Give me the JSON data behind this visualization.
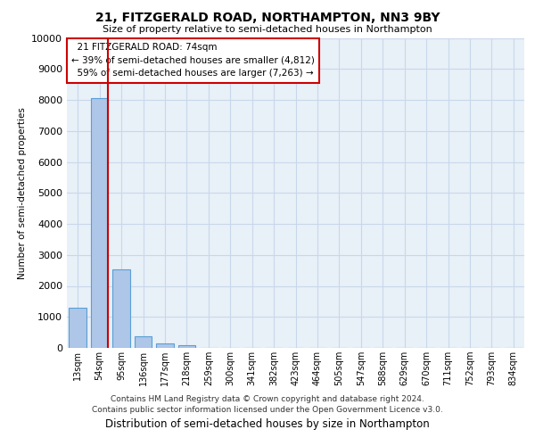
{
  "title_line1": "21, FITZGERALD ROAD, NORTHAMPTON, NN3 9BY",
  "title_line2": "Size of property relative to semi-detached houses in Northampton",
  "xlabel_bottom": "Distribution of semi-detached houses by size in Northampton",
  "ylabel": "Number of semi-detached properties",
  "footer_line1": "Contains HM Land Registry data © Crown copyright and database right 2024.",
  "footer_line2": "Contains public sector information licensed under the Open Government Licence v3.0.",
  "categories": [
    "13sqm",
    "54sqm",
    "95sqm",
    "136sqm",
    "177sqm",
    "218sqm",
    "259sqm",
    "300sqm",
    "341sqm",
    "382sqm",
    "423sqm",
    "464sqm",
    "505sqm",
    "547sqm",
    "588sqm",
    "629sqm",
    "670sqm",
    "711sqm",
    "752sqm",
    "793sqm",
    "834sqm"
  ],
  "values": [
    1300,
    8050,
    2520,
    380,
    140,
    90,
    0,
    0,
    0,
    0,
    0,
    0,
    0,
    0,
    0,
    0,
    0,
    0,
    0,
    0,
    0
  ],
  "bar_color": "#aec6e8",
  "bar_edge_color": "#5a9fd4",
  "property_label": "21 FITZGERALD ROAD: 74sqm",
  "pct_smaller": 39,
  "count_smaller": 4812,
  "pct_larger": 59,
  "count_larger": 7263,
  "vline_x_index": 1,
  "vline_color": "#cc0000",
  "annotation_box_color": "#cc0000",
  "ylim": [
    0,
    10000
  ],
  "yticks": [
    0,
    1000,
    2000,
    3000,
    4000,
    5000,
    6000,
    7000,
    8000,
    9000,
    10000
  ],
  "grid_color": "#c8d8ea",
  "bg_color": "#e8f0f8"
}
